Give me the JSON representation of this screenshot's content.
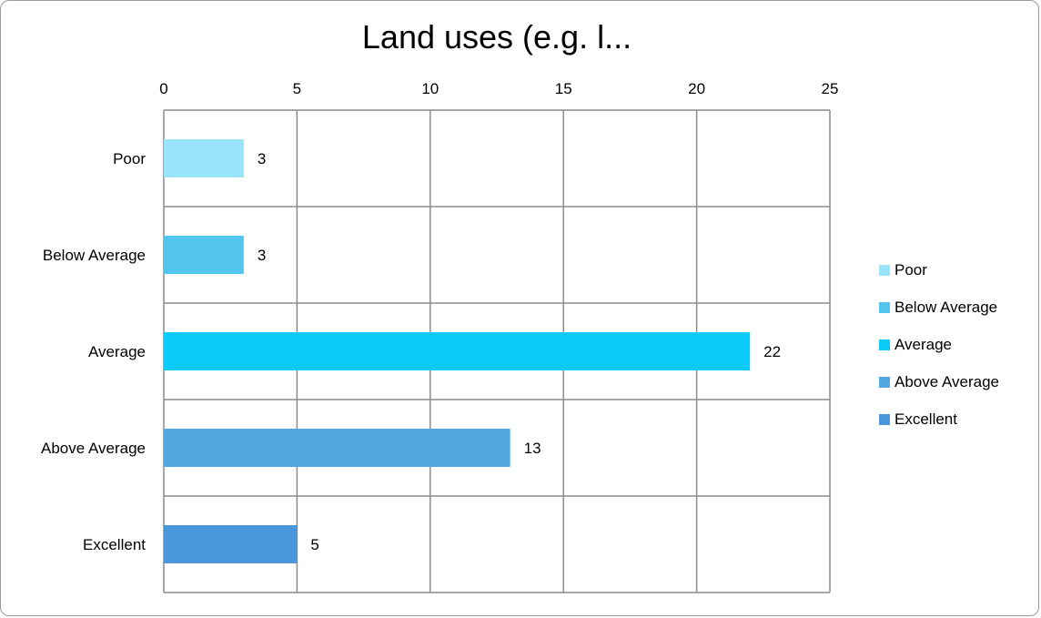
{
  "chart_data": {
    "type": "bar",
    "orientation": "horizontal",
    "title": "Land uses (e.g. l...",
    "categories": [
      "Poor",
      "Below Average",
      "Average",
      "Above Average",
      "Excellent"
    ],
    "values": [
      3,
      3,
      22,
      13,
      5
    ],
    "colors": [
      "#99E4FA",
      "#52C6EE",
      "#0ACBF9",
      "#54A8E2",
      "#4A97DC"
    ],
    "xlim": [
      0,
      25
    ],
    "xticks": [
      "0",
      "5",
      "10",
      "15",
      "20",
      "25"
    ],
    "xlabel": "",
    "ylabel": "",
    "grid": true,
    "x_axis_position": "top",
    "legend": {
      "placement": "right",
      "entries": [
        "Poor",
        "Below Average",
        "Average",
        "Above Average",
        "Excellent"
      ]
    },
    "data_labels": [
      "3",
      "3",
      "22",
      "13",
      "5"
    ]
  }
}
